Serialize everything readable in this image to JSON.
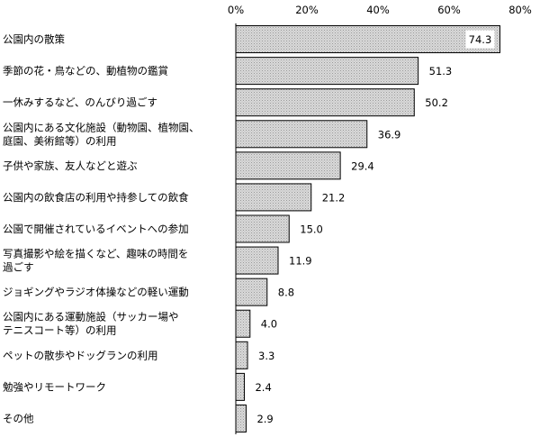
{
  "chart_data": {
    "type": "bar",
    "orientation": "horizontal",
    "title": "",
    "xlabel": "",
    "ylabel": "",
    "xlim": [
      0,
      80
    ],
    "ticks": [
      "0%",
      "20%",
      "40%",
      "60%",
      "80%"
    ],
    "grid": false,
    "legend": "none",
    "bar_style": "light-gray dotted fill with black outline",
    "colors": {
      "bar_fill": "#d4d4d4",
      "bar_outline": "#000000",
      "axis": "#000000"
    },
    "categories": [
      [
        "公園内の散策"
      ],
      [
        "季節の花・鳥などの、動植物の鑑賞"
      ],
      [
        "一休みするなど、のんびり過ごす"
      ],
      [
        "公園内にある文化施設（動物園、植物園、",
        "庭園、美術館等）の利用"
      ],
      [
        "子供や家族、友人などと遊ぶ"
      ],
      [
        "公園内の飲食店の利用や持参しての飲食"
      ],
      [
        "公園で開催されているイベントへの参加"
      ],
      [
        "写真撮影や絵を描くなど、趣味の時間を",
        "過ごす"
      ],
      [
        "ジョギングやラジオ体操などの軽い運動"
      ],
      [
        "公園内にある運動施設（サッカー場や",
        "テニスコート等）の利用"
      ],
      [
        "ペットの散歩やドッグランの利用"
      ],
      [
        "勉強やリモートワーク"
      ],
      [
        "その他"
      ]
    ],
    "values": [
      74.3,
      51.3,
      50.2,
      36.9,
      29.4,
      21.2,
      15.0,
      11.9,
      8.8,
      4.0,
      3.3,
      2.4,
      2.9
    ],
    "value_labels": [
      "74.3",
      "51.3",
      "50.2",
      "36.9",
      "29.4",
      "21.2",
      "15.0",
      "11.9",
      "8.8",
      "4.0",
      "3.3",
      "2.4",
      "2.9"
    ]
  }
}
